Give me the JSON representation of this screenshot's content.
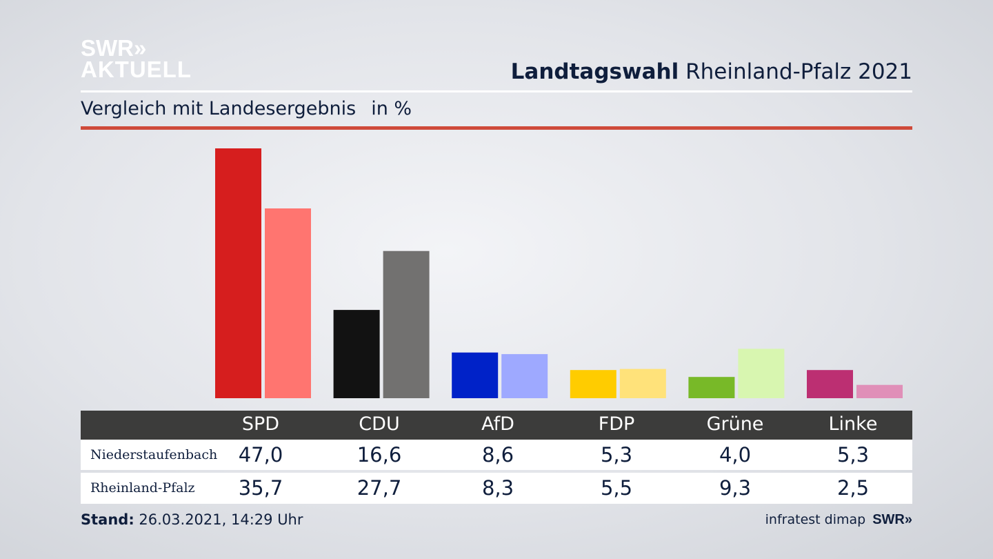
{
  "logo": {
    "line1": "SWR»",
    "line2": "AKTUELL"
  },
  "header": {
    "title_bold": "Landtagswahl",
    "title_rest": "Rheinland-Pfalz 2021"
  },
  "subtitle": {
    "text": "Vergleich mit Landesergebnis",
    "unit": "in %"
  },
  "colors": {
    "accent_red_line": "#cf4a3a",
    "table_header": "#3c3c3b",
    "text": "#0f1e3c"
  },
  "chart_data": {
    "type": "bar",
    "categories": [
      "SPD",
      "CDU",
      "AfD",
      "FDP",
      "Grüne",
      "Linke"
    ],
    "series": [
      {
        "name": "Niederstaufenbach",
        "values": [
          47.0,
          16.6,
          8.6,
          5.3,
          4.0,
          5.3
        ],
        "colors": [
          "#d61e1e",
          "#121212",
          "#0022c8",
          "#ffcc00",
          "#78b928",
          "#bc2f72"
        ]
      },
      {
        "name": "Rheinland-Pfalz",
        "values": [
          35.7,
          27.7,
          8.3,
          5.5,
          9.3,
          2.5
        ],
        "colors": [
          "#ff7570",
          "#727170",
          "#9ea9ff",
          "#ffe27a",
          "#d8f6b0",
          "#e08fb8"
        ]
      }
    ],
    "ylim": [
      0,
      47
    ],
    "grid": false,
    "legend": "table below chart"
  },
  "table": {
    "headers": [
      "SPD",
      "CDU",
      "AfD",
      "FDP",
      "Grüne",
      "Linke"
    ],
    "rows": [
      {
        "label": "Niederstaufenbach",
        "values": [
          "47,0",
          "16,6",
          "8,6",
          "5,3",
          "4,0",
          "5,3"
        ]
      },
      {
        "label": "Rheinland-Pfalz",
        "values": [
          "35,7",
          "27,7",
          "8,3",
          "5,5",
          "9,3",
          "2,5"
        ]
      }
    ]
  },
  "footer": {
    "stand_label": "Stand:",
    "stand_value": "26.03.2021, 14:29 Uhr",
    "source": "infratest dimap",
    "brand": "SWR»"
  }
}
